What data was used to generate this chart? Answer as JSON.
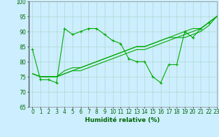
{
  "xlabel": "Humidité relative (%)",
  "xlim": [
    -0.5,
    23
  ],
  "ylim": [
    65,
    100
  ],
  "xticks": [
    0,
    1,
    2,
    3,
    4,
    5,
    6,
    7,
    8,
    9,
    10,
    11,
    12,
    13,
    14,
    15,
    16,
    17,
    18,
    19,
    20,
    21,
    22,
    23
  ],
  "yticks": [
    65,
    70,
    75,
    80,
    85,
    90,
    95,
    100
  ],
  "bg_color": "#cceeff",
  "grid_color": "#b0d8cc",
  "line_color": "#00aa00",
  "series": [
    [
      84,
      74,
      74,
      73,
      91,
      89,
      90,
      91,
      91,
      89,
      87,
      86,
      81,
      80,
      80,
      75,
      73,
      79,
      79,
      90,
      88,
      91,
      93,
      95
    ],
    [
      76,
      75,
      75,
      75,
      76,
      77,
      77,
      78,
      79,
      80,
      81,
      82,
      83,
      84,
      84,
      85,
      86,
      87,
      88,
      88,
      89,
      90,
      92,
      95
    ],
    [
      76,
      75,
      75,
      75,
      76,
      77,
      78,
      79,
      80,
      81,
      82,
      83,
      84,
      85,
      85,
      86,
      87,
      88,
      88,
      89,
      90,
      91,
      93,
      95
    ],
    [
      76,
      75,
      75,
      75,
      77,
      78,
      78,
      79,
      80,
      81,
      82,
      83,
      84,
      85,
      85,
      86,
      87,
      88,
      89,
      90,
      91,
      91,
      93,
      95
    ]
  ],
  "marker_series": 0,
  "xlabel_fontsize": 6.5,
  "tick_fontsize": 5.5,
  "tick_color": "#006600"
}
